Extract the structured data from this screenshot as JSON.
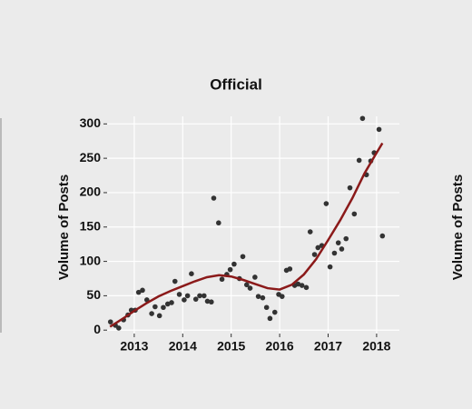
{
  "chart_data": {
    "type": "scatter",
    "title": "Official",
    "y_label": "Volume of Posts",
    "xlim": [
      2012.44,
      2018.47
    ],
    "ylim": [
      -5,
      311
    ],
    "xticks": [
      2013,
      2014,
      2015,
      2016,
      2017,
      2018
    ],
    "yticks": [
      0,
      50,
      100,
      150,
      200,
      250,
      300
    ],
    "grid": true,
    "points": {
      "color": "#333333",
      "x": [
        2012.51,
        2012.61,
        2012.68,
        2012.78,
        2012.87,
        2012.94,
        2013.02,
        2013.09,
        2013.17,
        2013.26,
        2013.36,
        2013.43,
        2013.52,
        2013.6,
        2013.69,
        2013.77,
        2013.84,
        2013.93,
        2014.03,
        2014.1,
        2014.18,
        2014.27,
        2014.35,
        2014.44,
        2014.51,
        2014.59,
        2014.64,
        2014.74,
        2014.81,
        2014.91,
        2014.98,
        2015.06,
        2015.17,
        2015.24,
        2015.32,
        2015.39,
        2015.49,
        2015.56,
        2015.65,
        2015.73,
        2015.8,
        2015.9,
        2015.98,
        2016.05,
        2016.14,
        2016.21,
        2016.31,
        2016.38,
        2016.46,
        2016.55,
        2016.63,
        2016.72,
        2016.79,
        2016.87,
        2016.96,
        2017.04,
        2017.13,
        2017.21,
        2017.28,
        2017.37,
        2017.45,
        2017.54,
        2017.64,
        2017.71,
        2017.79,
        2017.88,
        2017.95,
        2018.05,
        2018.12
      ],
      "values": [
        12,
        7,
        3,
        15,
        22,
        29,
        29,
        55,
        58,
        44,
        24,
        34,
        21,
        33,
        38,
        40,
        71,
        52,
        44,
        50,
        82,
        45,
        50,
        50,
        42,
        41,
        192,
        156,
        74,
        81,
        88,
        96,
        75,
        107,
        66,
        61,
        77,
        49,
        47,
        33,
        17,
        26,
        52,
        49,
        87,
        89,
        65,
        67,
        65,
        62,
        143,
        110,
        120,
        123,
        184,
        92,
        112,
        127,
        118,
        133,
        207,
        169,
        247,
        308,
        226,
        246,
        258,
        292,
        137
      ]
    },
    "trend": {
      "color": "#8b1a1a",
      "x": [
        2012.5,
        2012.75,
        2013,
        2013.25,
        2013.5,
        2013.75,
        2014,
        2014.25,
        2014.5,
        2014.75,
        2015,
        2015.25,
        2015.5,
        2015.75,
        2016,
        2016.25,
        2016.5,
        2016.75,
        2017,
        2017.25,
        2017.5,
        2017.75,
        2018,
        2018.12
      ],
      "values": [
        5,
        16,
        28,
        39,
        49,
        57,
        64,
        71,
        77,
        80,
        78,
        73,
        67,
        61,
        59,
        66,
        81,
        103,
        131,
        160,
        192,
        228,
        258,
        272
      ]
    }
  },
  "neighbor_label": "Volume of Posts"
}
